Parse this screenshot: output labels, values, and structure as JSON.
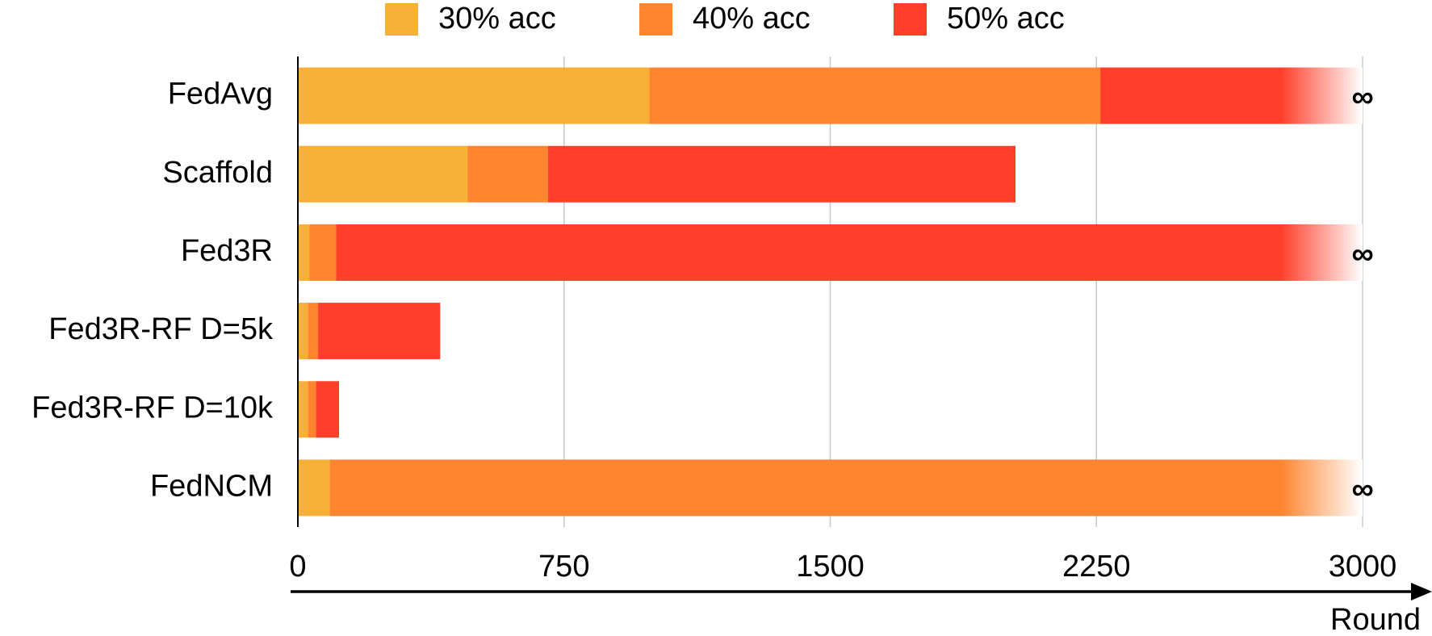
{
  "chart_data": {
    "type": "stacked-barh",
    "categories": [
      "FedAvg",
      "Scaffold",
      "Fed3R",
      "Fed3R-RF D=5k",
      "Fed3R-RF D=10k",
      "FedNCM"
    ],
    "series": [
      {
        "name": "30% acc",
        "color": "#f5b035",
        "values": [
          990,
          478,
          33,
          28,
          28,
          90
        ]
      },
      {
        "name": "40% acc",
        "color": "#fd8530",
        "values": [
          1271,
          227,
          75,
          29,
          23,
          null
        ]
      },
      {
        "name": "50% acc",
        "color": "#fe3f2a",
        "values": [
          null,
          1317,
          null,
          344,
          65,
          null
        ]
      }
    ],
    "unbounded": [
      true,
      false,
      true,
      false,
      false,
      true
    ],
    "unbounded_label": "∞",
    "x_label": "Round",
    "xlim": [
      0,
      3000
    ],
    "xticks": [
      0,
      750,
      1500,
      2250,
      3000
    ],
    "grid": true,
    "legend": "top"
  }
}
